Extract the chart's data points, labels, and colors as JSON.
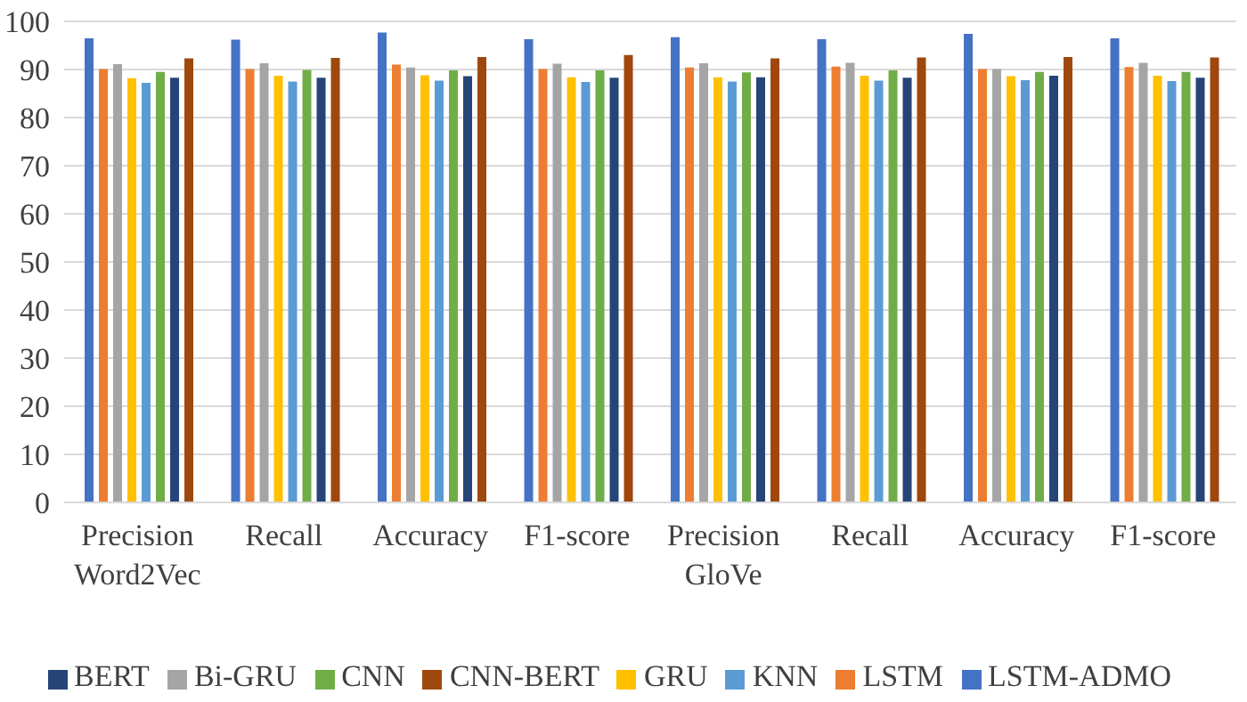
{
  "chart_data": {
    "type": "bar",
    "categories": [
      "Precision Word2Vec",
      "Recall",
      "Accuracy",
      "F1-score",
      "Precision GloVe",
      "Recall",
      "Accuracy",
      "F1-score"
    ],
    "series": [
      {
        "name": "LSTM-ADMO",
        "color": "#4472c4",
        "values": [
          96.5,
          96.2,
          97.7,
          96.3,
          96.7,
          96.3,
          97.4,
          96.5
        ]
      },
      {
        "name": "LSTM",
        "color": "#ed7d31",
        "values": [
          90.1,
          90.1,
          91,
          90.1,
          90.4,
          90.6,
          90.1,
          90.5
        ]
      },
      {
        "name": "Bi-GRU",
        "color": "#a5a5a5",
        "values": [
          91.1,
          91.3,
          90.4,
          91.2,
          91.3,
          91.4,
          90.1,
          91.4
        ]
      },
      {
        "name": "GRU",
        "color": "#ffc000",
        "values": [
          88.2,
          88.7,
          88.8,
          88.4,
          88.4,
          88.7,
          88.6,
          88.7
        ]
      },
      {
        "name": "KNN",
        "color": "#5b9bd5",
        "values": [
          87.2,
          87.5,
          87.7,
          87.4,
          87.5,
          87.7,
          87.8,
          87.6
        ]
      },
      {
        "name": "CNN",
        "color": "#70ad47",
        "values": [
          89.5,
          89.9,
          89.8,
          89.8,
          89.4,
          89.8,
          89.5,
          89.5
        ]
      },
      {
        "name": "BERT",
        "color": "#264478",
        "values": [
          88.3,
          88.3,
          88.6,
          88.3,
          88.4,
          88.3,
          88.7,
          88.3
        ]
      },
      {
        "name": "CNN-BERT",
        "color": "#9e480e",
        "values": [
          92.3,
          92.4,
          92.6,
          93,
          92.3,
          92.5,
          92.6,
          92.5
        ]
      }
    ],
    "ylim": [
      0,
      100
    ],
    "yticks": [
      0,
      10,
      20,
      30,
      40,
      50,
      60,
      70,
      80,
      90,
      100
    ],
    "grid": "y",
    "legend": "bottom"
  }
}
